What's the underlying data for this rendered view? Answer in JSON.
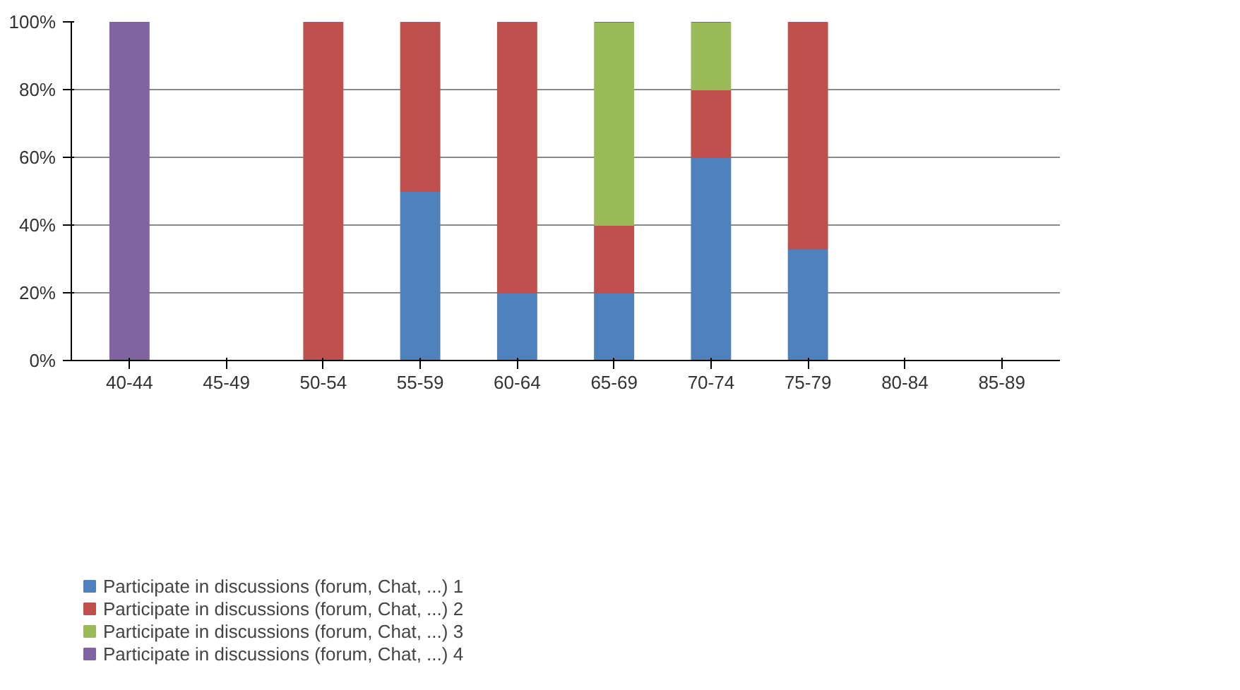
{
  "chart_data": {
    "type": "bar",
    "stacked": true,
    "categories": [
      "40-44",
      "45-49",
      "50-54",
      "55-59",
      "60-64",
      "65-69",
      "70-74",
      "75-79",
      "80-84",
      "85-89"
    ],
    "series": [
      {
        "name": "Participate in discussions (forum, Chat, ...) 1",
        "color": "#4f81bd",
        "values": [
          0,
          0,
          0,
          50,
          20,
          20,
          60,
          33,
          0,
          0
        ]
      },
      {
        "name": "Participate in discussions (forum, Chat, ...) 2",
        "color": "#c0504d",
        "values": [
          0,
          0,
          100,
          50,
          80,
          20,
          20,
          67,
          0,
          0
        ]
      },
      {
        "name": "Participate in discussions (forum, Chat, ...) 3",
        "color": "#9bbb59",
        "values": [
          0,
          0,
          0,
          0,
          0,
          60,
          20,
          0,
          0,
          0
        ]
      },
      {
        "name": "Participate in discussions (forum, Chat, ...) 4",
        "color": "#8064a2",
        "values": [
          100,
          0,
          0,
          0,
          0,
          0,
          0,
          0,
          0,
          0
        ]
      }
    ],
    "ylim": [
      0,
      100
    ],
    "yticks": [
      {
        "value": 0,
        "label": "0%"
      },
      {
        "value": 20,
        "label": "20%"
      },
      {
        "value": 40,
        "label": "40%"
      },
      {
        "value": 60,
        "label": "60%"
      },
      {
        "value": 80,
        "label": "80%"
      },
      {
        "value": 100,
        "label": "100%"
      }
    ],
    "grid": "y",
    "legend": "bottom"
  }
}
